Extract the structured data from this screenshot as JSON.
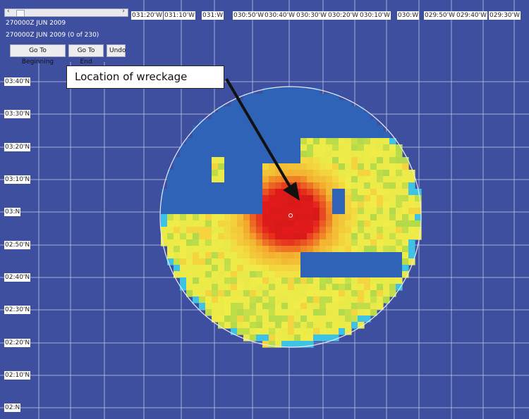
{
  "controls": {
    "time_label_top": "270000Z JUN 2009",
    "time_label_status": "270000Z JUN 2009 (0 of 230)",
    "buttons": {
      "beginning": "Go To Beginning",
      "end": "Go To End",
      "undo": "Undo"
    }
  },
  "map": {
    "longitude_labels": [
      "031:20'W",
      "031:10'W",
      "031:W",
      "030:50'W",
      "030:40'W",
      "030:30'W",
      "030:20'W",
      "030:10'W",
      "030:W",
      "029:50'W",
      "029:40'W",
      "029:30'W"
    ],
    "latitude_labels": [
      "03:40'N",
      "03:30'N",
      "03:20'N",
      "03:10'N",
      "03:N",
      "02:50'N",
      "02:40'N",
      "02:30'N",
      "02:20'N",
      "02:10'N",
      "02:N"
    ],
    "annotation": "Location of wreckage",
    "colors": {
      "background": "#3f4fa0",
      "no_data": "#2f63b8",
      "low": "#f2ec48",
      "mid": "#f4a52b",
      "high": "#e31a1a",
      "edge": "#3ec2e6",
      "grid": "#c7cbe6"
    }
  }
}
